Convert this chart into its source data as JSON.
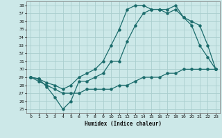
{
  "xlabel": "Humidex (Indice chaleur)",
  "bg_color": "#cce8e8",
  "line_color": "#1a6b6b",
  "grid_color": "#aacece",
  "xlim": [
    -0.5,
    23.5
  ],
  "ylim": [
    24.5,
    38.5
  ],
  "yticks": [
    25,
    26,
    27,
    28,
    29,
    30,
    31,
    32,
    33,
    34,
    35,
    36,
    37,
    38
  ],
  "xticks": [
    0,
    1,
    2,
    3,
    4,
    5,
    6,
    7,
    8,
    9,
    10,
    11,
    12,
    13,
    14,
    15,
    16,
    17,
    18,
    19,
    20,
    21,
    22,
    23
  ],
  "line1_x": [
    0,
    1,
    2,
    3,
    4,
    5,
    6,
    7,
    8,
    9,
    10,
    11,
    12,
    13,
    14,
    15,
    16,
    17,
    18,
    19,
    20,
    21,
    22,
    23
  ],
  "line1_y": [
    29,
    28.8,
    27.8,
    26.5,
    25.0,
    26.0,
    28.5,
    28.5,
    29.0,
    29.5,
    31.0,
    31.0,
    33.5,
    35.5,
    37.0,
    37.5,
    37.5,
    37.0,
    37.5,
    36.5,
    35.5,
    33.0,
    31.5,
    30.0
  ],
  "line2_x": [
    0,
    1,
    2,
    3,
    4,
    5,
    6,
    7,
    8,
    9,
    10,
    11,
    12,
    13,
    14,
    15,
    16,
    17,
    18,
    19,
    20,
    21,
    22,
    23
  ],
  "line2_y": [
    29,
    28.8,
    28.3,
    28.0,
    27.5,
    28.0,
    29.0,
    29.5,
    30.0,
    31.0,
    33.0,
    35.0,
    37.5,
    38.0,
    38.0,
    37.5,
    37.5,
    37.5,
    38.0,
    36.5,
    36.0,
    35.5,
    33.0,
    30.0
  ],
  "line3_x": [
    0,
    1,
    2,
    3,
    4,
    5,
    6,
    7,
    8,
    9,
    10,
    11,
    12,
    13,
    14,
    15,
    16,
    17,
    18,
    19,
    20,
    21,
    22,
    23
  ],
  "line3_y": [
    29,
    28.5,
    28.0,
    27.5,
    27.0,
    27.0,
    27.0,
    27.5,
    27.5,
    27.5,
    27.5,
    28.0,
    28.0,
    28.5,
    29.0,
    29.0,
    29.0,
    29.5,
    29.5,
    30.0,
    30.0,
    30.0,
    30.0,
    30.0
  ]
}
